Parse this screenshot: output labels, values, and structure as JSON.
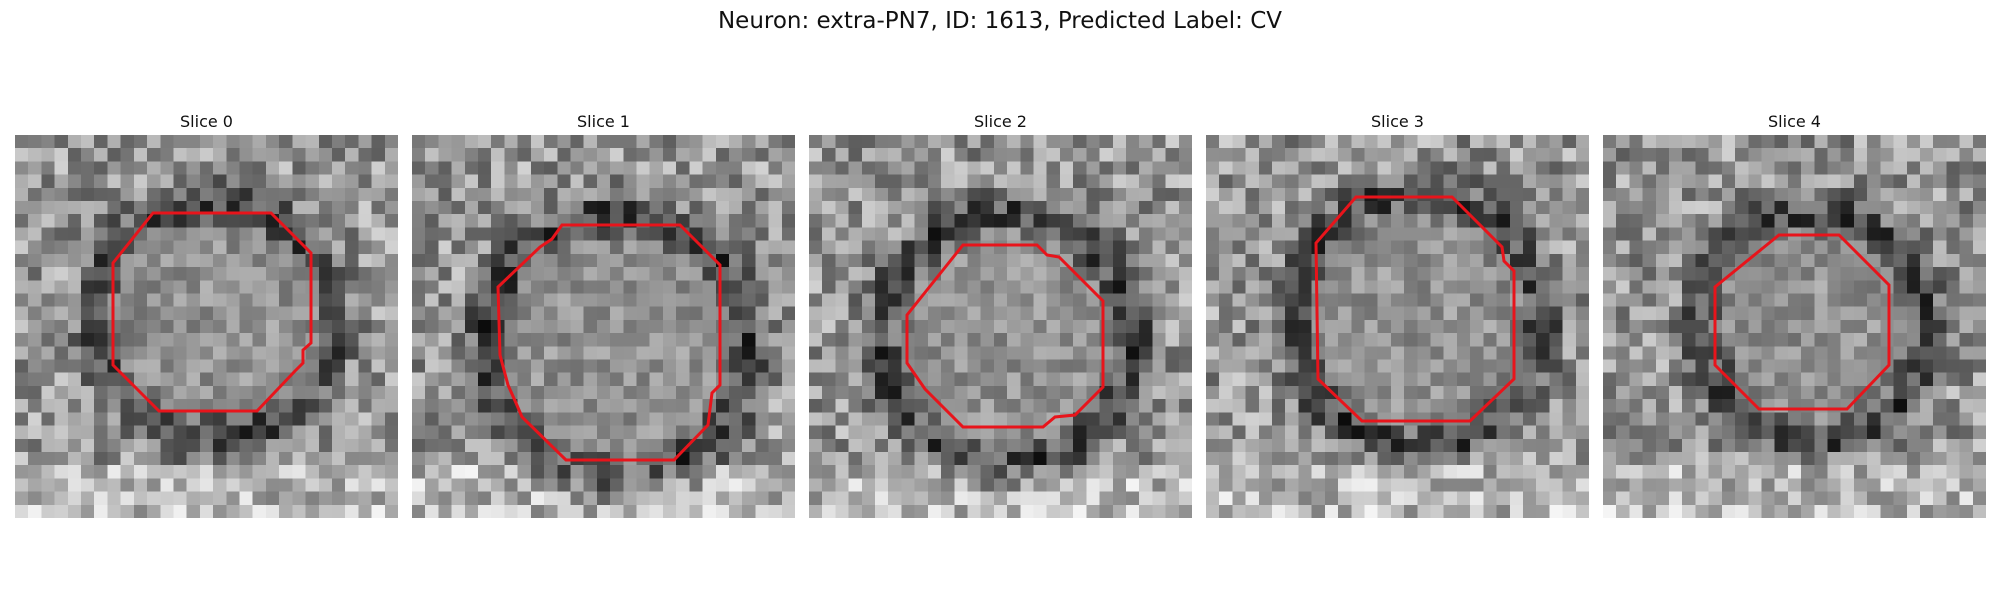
{
  "figure": {
    "title": "Neuron: extra-PN7, ID: 1613, Predicted Label: CV"
  },
  "panels": [
    {
      "title": "Slice 0"
    },
    {
      "title": "Slice 1"
    },
    {
      "title": "Slice 2"
    },
    {
      "title": "Slice 3"
    },
    {
      "title": "Slice 4"
    }
  ],
  "colors": {
    "contour": "#e8141b",
    "background": "#ffffff"
  }
}
